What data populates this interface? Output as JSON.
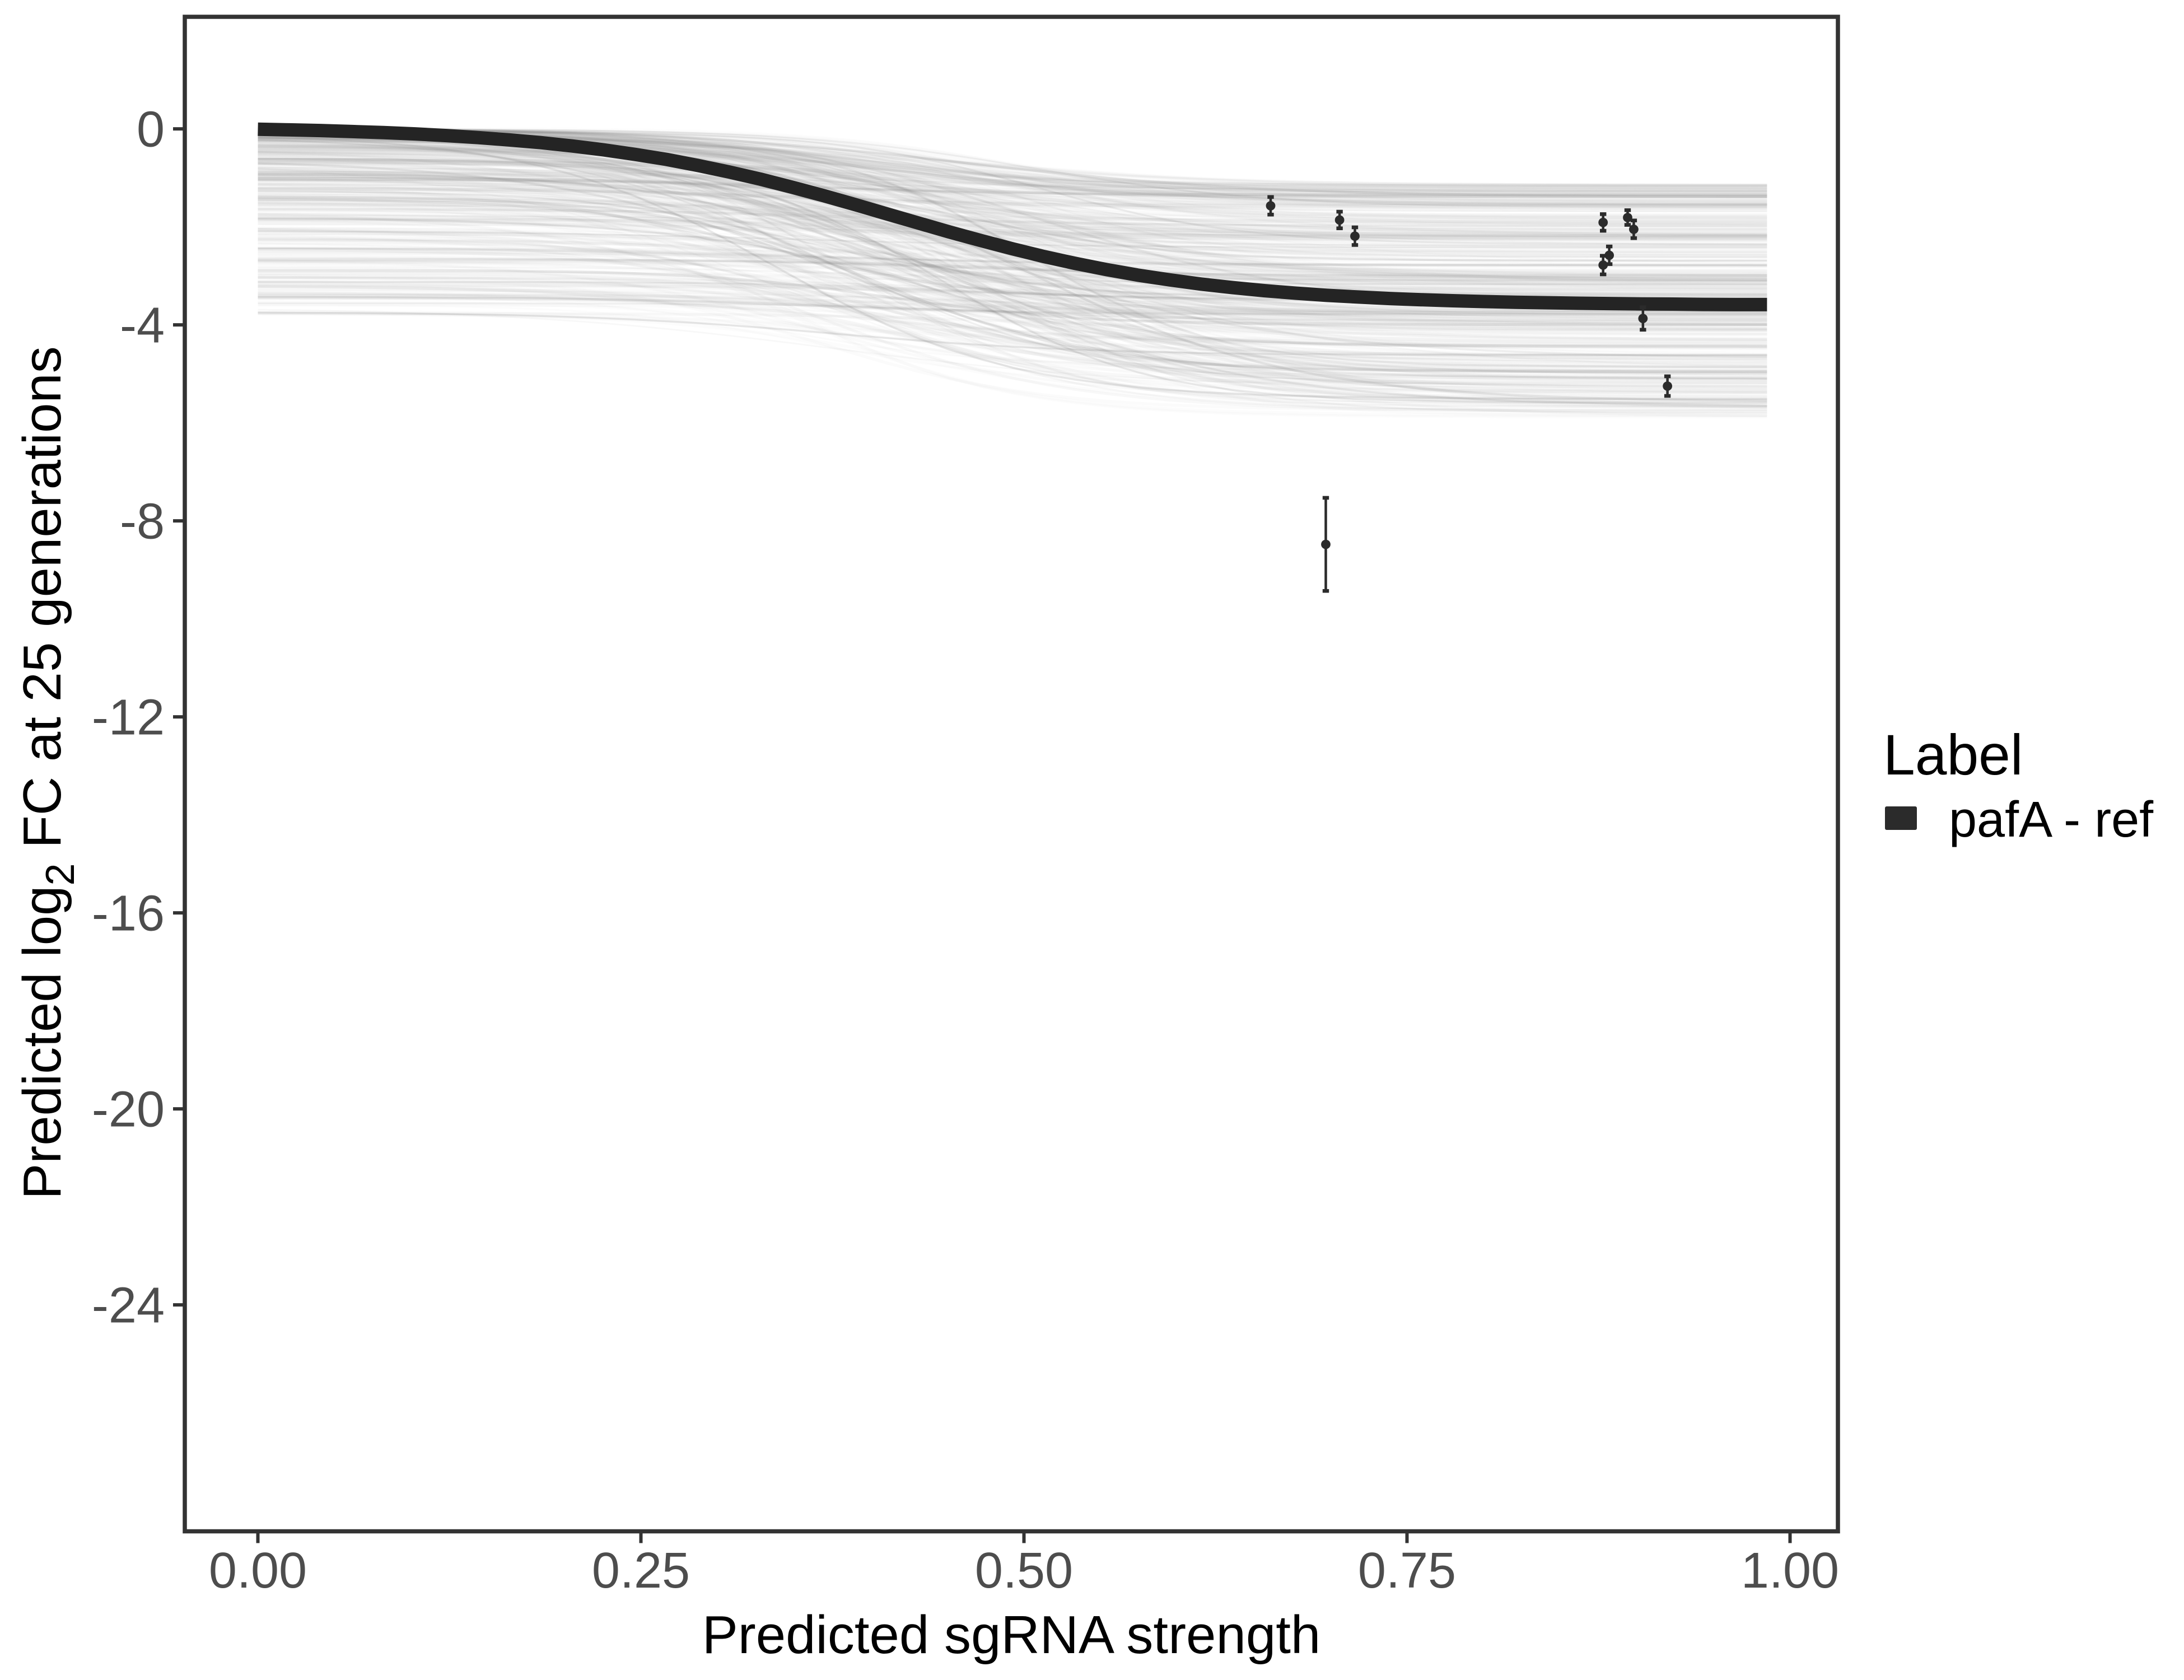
{
  "chart_data": {
    "type": "line",
    "title": "",
    "xlabel": "Predicted sgRNA strength",
    "ylabel": "Predicted log2 FC at 25 generations",
    "ylabel_parts": {
      "pre": "Predicted  log",
      "sub": "2",
      "post": " FC at 25 generations"
    },
    "x_ticks": {
      "values": [
        0,
        0.25,
        0.5,
        0.75,
        1.0
      ],
      "labels": [
        "0.00",
        "0.25",
        "0.50",
        "0.75",
        "1.00"
      ]
    },
    "y_ticks": {
      "values": [
        0,
        -4,
        -8,
        -12,
        -16,
        -20,
        -24
      ],
      "labels": [
        "0",
        "-4",
        "-8",
        "-12",
        "-16",
        "-20",
        "-24"
      ]
    },
    "xlim": [
      -0.048,
      1.031
    ],
    "ylim": [
      -28.6,
      2.3
    ],
    "grid": false,
    "legend": {
      "title": "Label",
      "position": "right",
      "items": [
        {
          "label": "pafA - ref",
          "color": "#2b2b2b"
        }
      ]
    },
    "reference_curve": {
      "name": "pafA - ref",
      "model": "logistic",
      "upper_asymptote": 0.05,
      "lower_asymptote": -3.6,
      "midpoint": 0.415,
      "steepness": 10,
      "x_range": [
        0,
        0.985
      ],
      "color": "#242424",
      "stroke_width": 8
    },
    "posterior_draws": {
      "count": 430,
      "color": "#8c8c8c",
      "dark_strand_color": "#6f6f6f",
      "x_range": [
        0,
        0.985
      ],
      "upper_start_range": [
        0,
        -3.8
      ],
      "lower_end_range": [
        -1.15,
        -5.9
      ],
      "midpoint_range": [
        0.33,
        0.51
      ],
      "steepness_range": [
        9,
        16
      ]
    },
    "points": [
      {
        "x": 0.661,
        "y": -1.57,
        "error": 0.18
      },
      {
        "x": 0.706,
        "y": -1.86,
        "error": 0.17
      },
      {
        "x": 0.716,
        "y": -2.19,
        "error": 0.18
      },
      {
        "x": 0.878,
        "y": -1.91,
        "error": 0.17
      },
      {
        "x": 0.894,
        "y": -1.81,
        "error": 0.15
      },
      {
        "x": 0.898,
        "y": -2.05,
        "error": 0.18
      },
      {
        "x": 0.882,
        "y": -2.58,
        "error": 0.18
      },
      {
        "x": 0.878,
        "y": -2.78,
        "error": 0.19
      },
      {
        "x": 0.904,
        "y": -3.87,
        "error": 0.23
      },
      {
        "x": 0.92,
        "y": -5.25,
        "error": 0.2
      },
      {
        "x": 0.697,
        "y": -8.48,
        "error": 0.95
      }
    ],
    "point_color": "#2b2b2b"
  },
  "colors": {
    "background": "#ffffff",
    "panel_border": "#333333",
    "tick_mark": "#333333",
    "tick_label": "#4d4d4d",
    "axis_title": "#000000"
  }
}
